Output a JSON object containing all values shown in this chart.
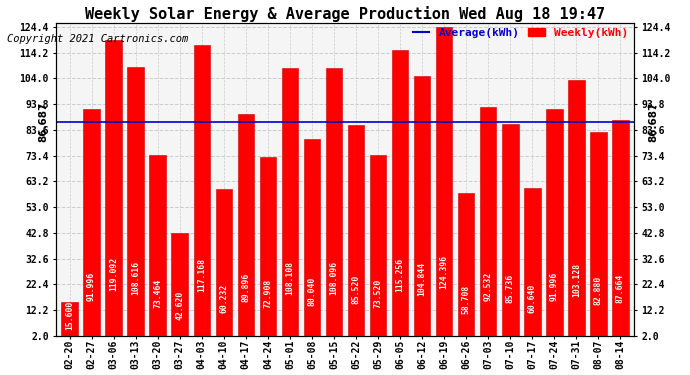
{
  "title": "Weekly Solar Energy & Average Production Wed Aug 18 19:47",
  "copyright": "Copyright 2021 Cartronics.com",
  "categories": [
    "02-20",
    "02-27",
    "03-06",
    "03-13",
    "03-20",
    "03-27",
    "04-03",
    "04-10",
    "04-17",
    "04-24",
    "05-01",
    "05-08",
    "05-15",
    "05-22",
    "05-29",
    "06-05",
    "06-12",
    "06-19",
    "06-26",
    "07-03",
    "07-10",
    "07-17",
    "07-24",
    "07-31",
    "08-07",
    "08-14"
  ],
  "values": [
    15.6,
    91.996,
    119.092,
    108.616,
    73.464,
    42.62,
    117.168,
    60.232,
    89.896,
    72.908,
    108.108,
    80.04,
    108.096,
    85.52,
    73.52,
    115.256,
    104.844,
    124.396,
    58.708,
    92.532,
    85.736,
    60.64,
    91.996,
    103.128,
    82.88,
    87.664
  ],
  "value_labels": [
    "15.600",
    "91.996",
    "119.092",
    "108.616",
    "73.464",
    "42.620",
    "117.168",
    "60.232",
    "89.896",
    "72.908",
    "108.108",
    "80.040",
    "108.096",
    "85.520",
    "73.520",
    "115.256",
    "104.844",
    "124.396",
    "58.708",
    "92.532",
    "85.736",
    "60.640",
    "91.996",
    "103.128",
    "82.880",
    "87.664"
  ],
  "average": 86.687,
  "bar_color": "#ff0000",
  "average_line_color": "#0000cd",
  "bg_color": "#ffffff",
  "plot_bg_color": "#f5f5f5",
  "grid_color": "#cccccc",
  "ylim": [
    2.0,
    126.0
  ],
  "yticks": [
    2.0,
    12.2,
    22.4,
    32.6,
    42.8,
    53.0,
    63.2,
    73.4,
    83.6,
    93.8,
    104.0,
    114.2,
    124.4
  ],
  "legend_avg_label": "Average(kWh)",
  "legend_weekly_label": "Weekly(kWh)",
  "avg_label": "86.687",
  "title_fontsize": 11,
  "copyright_fontsize": 7.5,
  "bar_value_fontsize": 5.8,
  "tick_fontsize": 7,
  "legend_fontsize": 8
}
